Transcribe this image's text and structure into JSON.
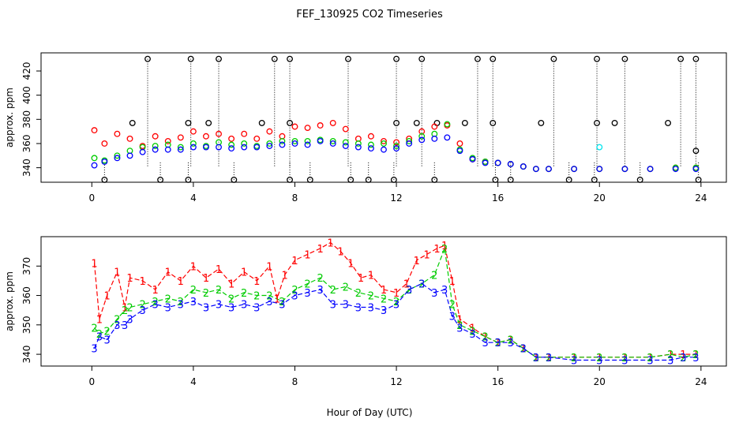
{
  "figure": {
    "title": "FEF_130925  CO2 Timeseries",
    "xlabel": "Hour of Day (UTC)"
  },
  "colors": {
    "c1": "#ff0000",
    "c2": "#00cc00",
    "c3": "#0000ff",
    "outlier": "#000000",
    "cyan": "#00e5ee"
  },
  "chart_data": [
    {
      "type": "scatter",
      "name": "top-panel",
      "ylabel": "approx. ppm",
      "xlim": [
        -2,
        25
      ],
      "ylim": [
        328,
        435
      ],
      "xticks": [
        0,
        4,
        8,
        12,
        16,
        20,
        24
      ],
      "yticks": [
        340,
        360,
        380,
        400,
        420
      ],
      "ytick_labels": [
        "340",
        "360",
        "380",
        "400",
        "420"
      ],
      "markers": "open circles; red=sensor 1, green=sensor 2, blue=sensor 3, black=outliers joined by dotted lines",
      "series": [
        {
          "name": "1",
          "color": "#ff0000",
          "x": [
            0.1,
            0.5,
            1.0,
            1.5,
            2.0,
            2.5,
            3.0,
            3.5,
            4.0,
            4.5,
            5.0,
            5.5,
            6.0,
            6.5,
            7.0,
            7.5,
            8.0,
            8.5,
            9.0,
            9.5,
            10.0,
            10.5,
            11.0,
            11.5,
            12.0,
            12.5,
            13.0,
            13.5,
            14.0,
            14.5,
            15.0,
            15.5,
            16.0,
            16.5,
            17.0,
            17.5,
            18.0,
            19.0,
            20.0,
            21.0,
            22.0,
            23.0,
            23.8
          ],
          "y": [
            371,
            360,
            368,
            364,
            358,
            366,
            362,
            365,
            370,
            366,
            368,
            364,
            368,
            364,
            370,
            366,
            374,
            373,
            375,
            377,
            372,
            364,
            366,
            362,
            361,
            364,
            370,
            374,
            375,
            360,
            347,
            345,
            344,
            343,
            341,
            339,
            339,
            339,
            339,
            339,
            339,
            340,
            340
          ]
        },
        {
          "name": "2",
          "color": "#00cc00",
          "x": [
            0.1,
            0.5,
            1.0,
            1.5,
            2.0,
            2.5,
            3.0,
            3.5,
            4.0,
            4.5,
            5.0,
            5.5,
            6.0,
            6.5,
            7.0,
            7.5,
            8.0,
            8.5,
            9.0,
            9.5,
            10.0,
            10.5,
            11.0,
            11.5,
            12.0,
            12.5,
            13.0,
            13.5,
            14.0,
            14.5,
            15.0,
            15.5,
            16.0,
            16.5,
            17.0,
            17.5,
            18.0,
            19.0,
            20.0,
            21.0,
            22.0,
            23.0,
            23.8
          ],
          "y": [
            348,
            346,
            350,
            354,
            357,
            358,
            359,
            357,
            360,
            358,
            361,
            359,
            360,
            358,
            360,
            362,
            362,
            362,
            363,
            362,
            361,
            360,
            359,
            360,
            358,
            362,
            366,
            368,
            376,
            355,
            348,
            345,
            344,
            343,
            341,
            339,
            339,
            339,
            339,
            339,
            339,
            340,
            340
          ]
        },
        {
          "name": "3",
          "color": "#0000ff",
          "x": [
            0.1,
            0.5,
            1.0,
            1.5,
            2.0,
            2.5,
            3.0,
            3.5,
            4.0,
            4.5,
            5.0,
            5.5,
            6.0,
            6.5,
            7.0,
            7.5,
            8.0,
            8.5,
            9.0,
            9.5,
            10.0,
            10.5,
            11.0,
            11.5,
            12.0,
            12.5,
            13.0,
            13.5,
            14.0,
            14.5,
            15.0,
            15.5,
            16.0,
            16.5,
            17.0,
            17.5,
            18.0,
            19.0,
            20.0,
            21.0,
            22.0,
            23.0,
            23.8
          ],
          "y": [
            342,
            345,
            348,
            350,
            353,
            355,
            355,
            355,
            357,
            357,
            357,
            356,
            357,
            357,
            358,
            359,
            360,
            359,
            362,
            360,
            358,
            357,
            356,
            355,
            356,
            360,
            363,
            364,
            365,
            354,
            347,
            344,
            344,
            343,
            341,
            339,
            339,
            339,
            339,
            339,
            339,
            339,
            339
          ]
        },
        {
          "name": "cyan",
          "color": "#00e5ee",
          "x": [
            20.0
          ],
          "y": [
            357
          ]
        },
        {
          "name": "outliers-high",
          "color": "#000000",
          "x": [
            2.2,
            3.9,
            5.0,
            7.2,
            7.8,
            10.1,
            12.0,
            13.0,
            15.2,
            15.8,
            18.2,
            19.9,
            21.0,
            23.2,
            23.8
          ],
          "y": [
            430,
            430,
            430,
            430,
            430,
            430,
            430,
            430,
            430,
            430,
            430,
            430,
            430,
            430,
            430
          ]
        },
        {
          "name": "outliers-mid",
          "color": "#000000",
          "x": [
            1.6,
            3.8,
            4.6,
            6.7,
            7.8,
            12.0,
            12.8,
            13.6,
            14.7,
            15.8,
            17.7,
            19.9,
            20.6,
            22.7,
            23.8
          ],
          "y": [
            377,
            377,
            377,
            377,
            377,
            377,
            377,
            377,
            377,
            377,
            377,
            377,
            377,
            377,
            354
          ]
        },
        {
          "name": "outliers-low",
          "color": "#000000",
          "x": [
            0.5,
            2.7,
            3.8,
            5.6,
            7.8,
            8.6,
            10.2,
            10.9,
            11.9,
            13.5,
            15.9,
            16.5,
            18.8,
            19.8,
            21.6,
            23.9
          ],
          "y": [
            330,
            330,
            330,
            330,
            330,
            330,
            330,
            330,
            330,
            330,
            330,
            330,
            330,
            330,
            330,
            330
          ]
        }
      ]
    },
    {
      "type": "line",
      "name": "bottom-panel",
      "ylabel": "approx. ppm",
      "xlim": [
        -2,
        25
      ],
      "ylim": [
        336,
        380
      ],
      "xticks": [
        0,
        4,
        8,
        12,
        16,
        20,
        24
      ],
      "xtick_labels": [
        "0",
        "4",
        "8",
        "12",
        "16",
        "20",
        "24"
      ],
      "yticks": [
        340,
        350,
        360,
        370
      ],
      "ytick_labels": [
        "340",
        "350",
        "360",
        "370"
      ],
      "markers": "series plotted with digit markers 1, 2, 3",
      "series": [
        {
          "name": "1",
          "marker": "1",
          "color": "#ff0000",
          "x": [
            0.1,
            0.3,
            0.6,
            1.0,
            1.3,
            1.5,
            2.0,
            2.5,
            3.0,
            3.5,
            4.0,
            4.5,
            5.0,
            5.5,
            6.0,
            6.5,
            7.0,
            7.3,
            7.6,
            8.0,
            8.5,
            9.0,
            9.4,
            9.8,
            10.2,
            10.6,
            11.0,
            11.5,
            12.0,
            12.4,
            12.8,
            13.2,
            13.6,
            13.9,
            14.2,
            14.5,
            15.0,
            15.5,
            16.0,
            16.5,
            17.0,
            17.5,
            18.0,
            19.0,
            20.0,
            21.0,
            22.0,
            22.8,
            23.3,
            23.8
          ],
          "y": [
            371,
            352,
            360,
            368,
            356,
            366,
            365,
            362,
            368,
            365,
            370,
            366,
            369,
            364,
            368,
            365,
            370,
            359,
            367,
            372,
            374,
            376,
            378,
            375,
            371,
            366,
            367,
            362,
            361,
            364,
            372,
            374,
            376,
            377,
            365,
            352,
            349,
            346,
            344,
            345,
            342,
            339,
            339,
            339,
            339,
            339,
            339,
            340,
            340,
            340
          ]
        },
        {
          "name": "2",
          "marker": "2",
          "color": "#00cc00",
          "x": [
            0.1,
            0.3,
            0.6,
            1.0,
            1.3,
            1.5,
            2.0,
            2.5,
            3.0,
            3.5,
            4.0,
            4.5,
            5.0,
            5.5,
            6.0,
            6.5,
            7.0,
            7.5,
            8.0,
            8.5,
            9.0,
            9.5,
            10.0,
            10.5,
            11.0,
            11.5,
            12.0,
            12.5,
            13.0,
            13.5,
            13.9,
            14.2,
            14.5,
            15.0,
            15.5,
            16.0,
            16.5,
            17.0,
            17.5,
            18.0,
            19.0,
            20.0,
            21.0,
            22.0,
            22.8,
            23.3,
            23.8
          ],
          "y": [
            349,
            347,
            348,
            352,
            355,
            356,
            357,
            358,
            359,
            358,
            362,
            361,
            362,
            359,
            361,
            360,
            360,
            358,
            362,
            364,
            366,
            362,
            363,
            361,
            360,
            359,
            358,
            362,
            364,
            367,
            376,
            357,
            350,
            348,
            346,
            344,
            345,
            342,
            339,
            339,
            339,
            339,
            339,
            339,
            340,
            339,
            340
          ]
        },
        {
          "name": "3",
          "marker": "3",
          "color": "#0000ff",
          "x": [
            0.1,
            0.3,
            0.6,
            1.0,
            1.3,
            1.5,
            2.0,
            2.5,
            3.0,
            3.5,
            4.0,
            4.5,
            5.0,
            5.5,
            6.0,
            6.5,
            7.0,
            7.5,
            8.0,
            8.5,
            9.0,
            9.5,
            10.0,
            10.5,
            11.0,
            11.5,
            12.0,
            12.5,
            13.0,
            13.5,
            13.9,
            14.2,
            14.5,
            15.0,
            15.5,
            16.0,
            16.5,
            17.0,
            17.5,
            18.0,
            19.0,
            20.0,
            21.0,
            22.0,
            22.8,
            23.3,
            23.8
          ],
          "y": [
            342,
            346,
            345,
            350,
            350,
            352,
            355,
            357,
            356,
            357,
            358,
            356,
            357,
            356,
            357,
            356,
            358,
            357,
            360,
            361,
            362,
            357,
            357,
            356,
            356,
            355,
            357,
            362,
            364,
            361,
            362,
            353,
            349,
            347,
            344,
            344,
            344,
            342,
            339,
            339,
            338,
            338,
            338,
            338,
            338,
            339,
            339
          ]
        }
      ]
    }
  ]
}
